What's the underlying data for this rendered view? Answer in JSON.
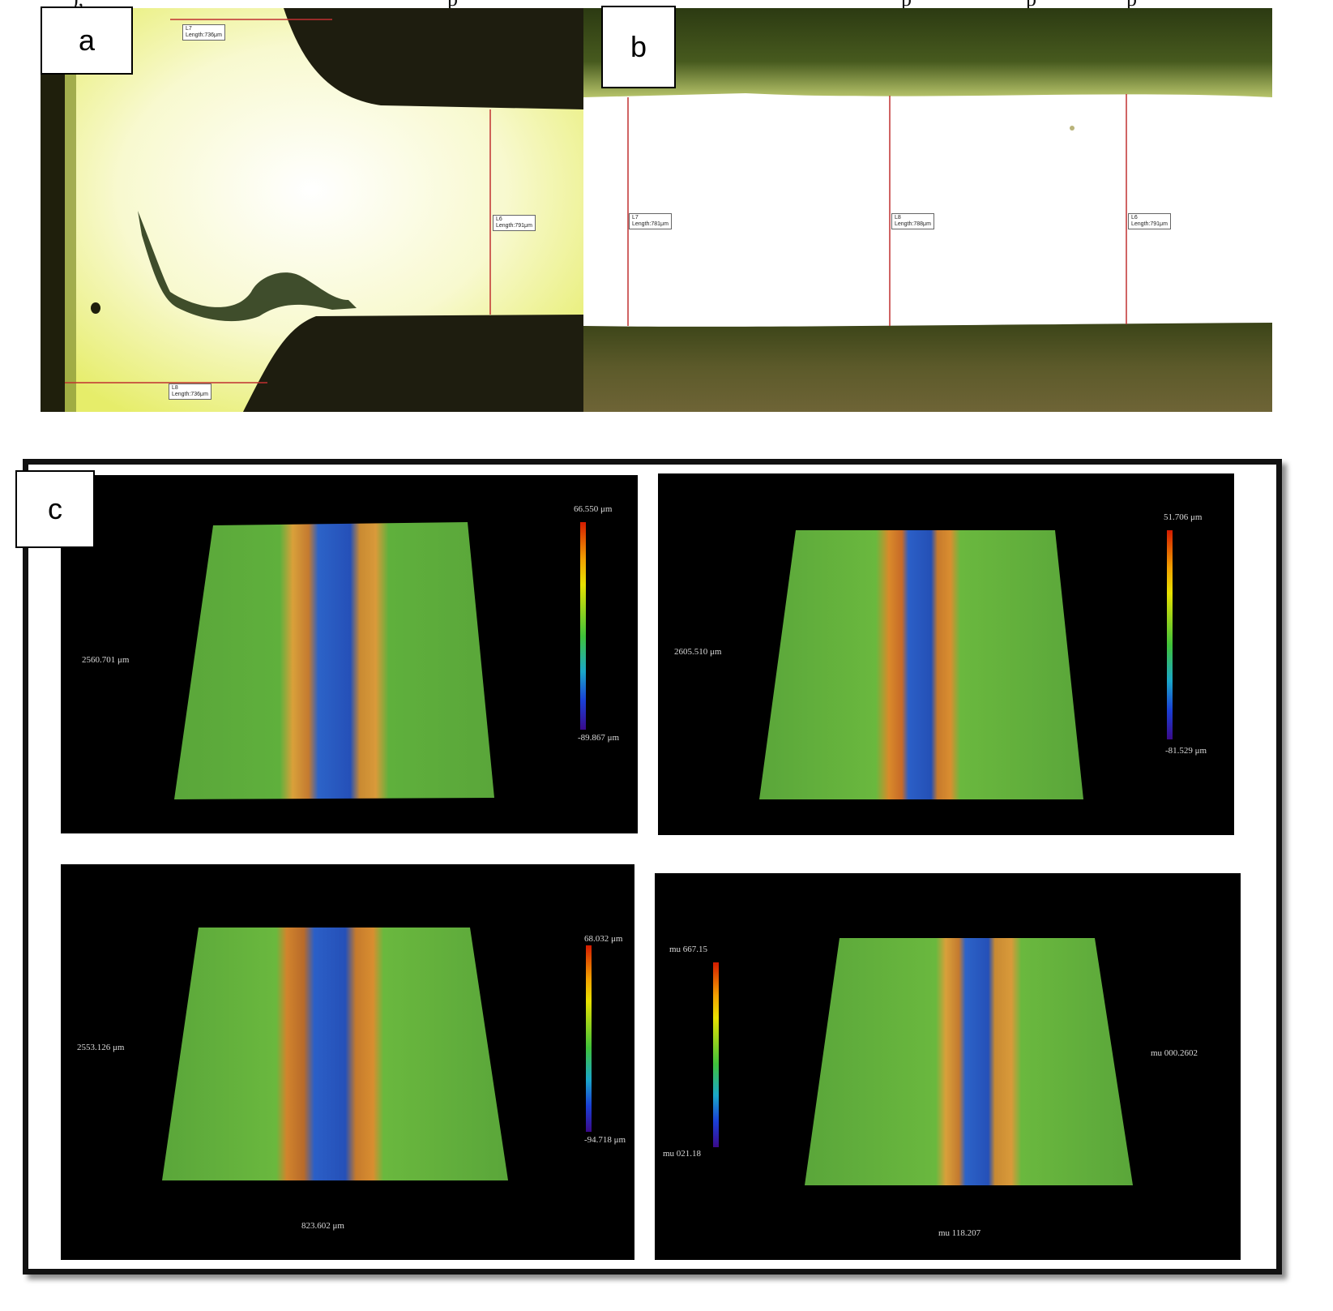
{
  "header_text_fragments": [
    "), ",
    "p",
    "p",
    "p",
    "p"
  ],
  "panels": {
    "a": {
      "label": "a",
      "measurements": [
        {
          "id": "L7",
          "text": "Length:736μm"
        },
        {
          "id": "L6",
          "text": "Length:791μm"
        },
        {
          "id": "L8",
          "text": "Length:736μm"
        }
      ]
    },
    "b": {
      "label": "b",
      "measurements": [
        {
          "id": "L7",
          "text": "Length:781μm"
        },
        {
          "id": "L8",
          "text": "Length:788μm"
        },
        {
          "id": "L6",
          "text": "Length:791μm"
        }
      ]
    },
    "c": {
      "label": "c",
      "scans": [
        {
          "side_label": "2560.701 μm",
          "max_label": "66.550 μm",
          "min_label": "-89.867 μm",
          "bottom_label": ""
        },
        {
          "side_label": "2605.510 μm",
          "max_label": "51.706 μm",
          "min_label": "-81.529 μm",
          "bottom_label": ""
        },
        {
          "side_label": "2553.126 μm",
          "max_label": "68.032 μm",
          "min_label": "-94.718 μm",
          "bottom_label": "823.602 μm"
        },
        {
          "side_label": "mu 000.2602",
          "max_label": "mu 667.15",
          "min_label": "mu 021.18",
          "bottom_label": "mu 118.207"
        }
      ]
    }
  },
  "colors": {
    "micro_bright": "#f7f9d8",
    "micro_yellow": "#e9ef6a",
    "micro_dark": "#2a2a12",
    "measure_line": "#c03030",
    "surface_green": "#5fae3a",
    "ridge_orange": "#d9822b",
    "groove_blue": "#2c62c8"
  }
}
